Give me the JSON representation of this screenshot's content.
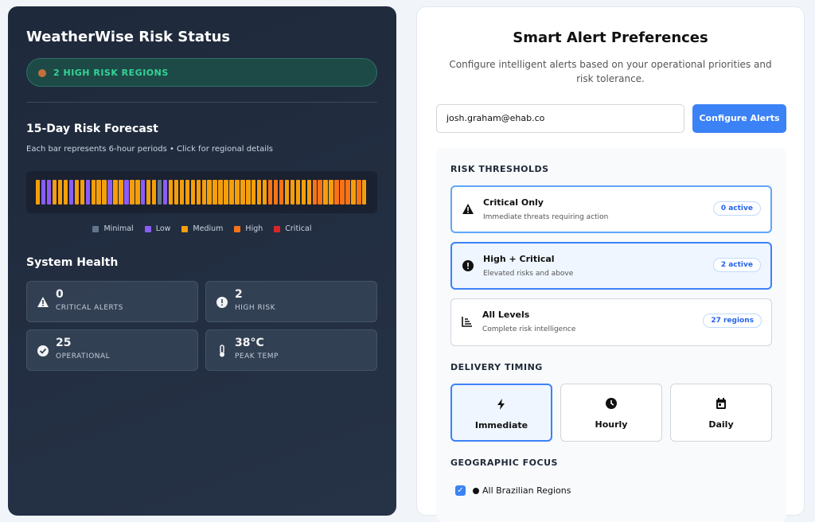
{
  "status": {
    "title": "WeatherWise Risk Status",
    "badge": "2 HIGH RISK REGIONS",
    "forecast": {
      "title": "15-Day Risk Forecast",
      "subtitle": "Each bar represents 6-hour periods • Click for regional details",
      "levels": [
        {
          "name": "Minimal",
          "color": "#64748b"
        },
        {
          "name": "Low",
          "color": "#8b5cf6"
        },
        {
          "name": "Medium",
          "color": "#f59e0b"
        },
        {
          "name": "High",
          "color": "#f97316"
        },
        {
          "name": "Critical",
          "color": "#dc2626"
        }
      ],
      "bars": [
        "Medium",
        "Low",
        "Low",
        "Medium",
        "Medium",
        "Medium",
        "Low",
        "Medium",
        "Medium",
        "Low",
        "Medium",
        "Medium",
        "Medium",
        "Low",
        "Medium",
        "Medium",
        "Low",
        "Medium",
        "Medium",
        "Low",
        "Medium",
        "Medium",
        "Minimal",
        "Low",
        "Medium",
        "Medium",
        "Medium",
        "Medium",
        "Medium",
        "Medium",
        "Medium",
        "Medium",
        "Medium",
        "Medium",
        "Medium",
        "Medium",
        "Medium",
        "Medium",
        "Medium",
        "Medium",
        "Medium",
        "Medium",
        "High",
        "High",
        "High",
        "Medium",
        "Medium",
        "Medium",
        "Medium",
        "Medium",
        "High",
        "High",
        "Medium",
        "Medium",
        "High",
        "High",
        "High",
        "Medium",
        "High",
        "Medium"
      ]
    },
    "health": {
      "title": "System Health",
      "tiles": [
        {
          "value": 0,
          "label": "CRITICAL ALERTS"
        },
        {
          "value": 2,
          "label": "HIGH RISK"
        },
        {
          "value": 25,
          "label": "OPERATIONAL"
        },
        {
          "value": "38°C",
          "label": "PEAK TEMP"
        }
      ]
    }
  },
  "prefs": {
    "title": "Smart Alert Preferences",
    "subtitle": "Configure intelligent alerts based on your operational priorities and risk tolerance.",
    "email": "josh.graham@ehab.co",
    "button": "Configure Alerts",
    "thresholds": {
      "title": "RISK THRESHOLDS",
      "options": [
        {
          "name": "Critical Only",
          "desc": "Immediate threats requiring action",
          "badge": "0 active"
        },
        {
          "name": "High + Critical",
          "desc": "Elevated risks and above",
          "badge": "2 active"
        },
        {
          "name": "All Levels",
          "desc": "Complete risk intelligence",
          "badge": "27 regions"
        }
      ]
    },
    "timing": {
      "title": "DELIVERY TIMING",
      "options": [
        "Immediate",
        "Hourly",
        "Daily"
      ]
    },
    "geo": {
      "title": "GEOGRAPHIC FOCUS",
      "options": [
        "All Brazilian Regions"
      ]
    }
  }
}
